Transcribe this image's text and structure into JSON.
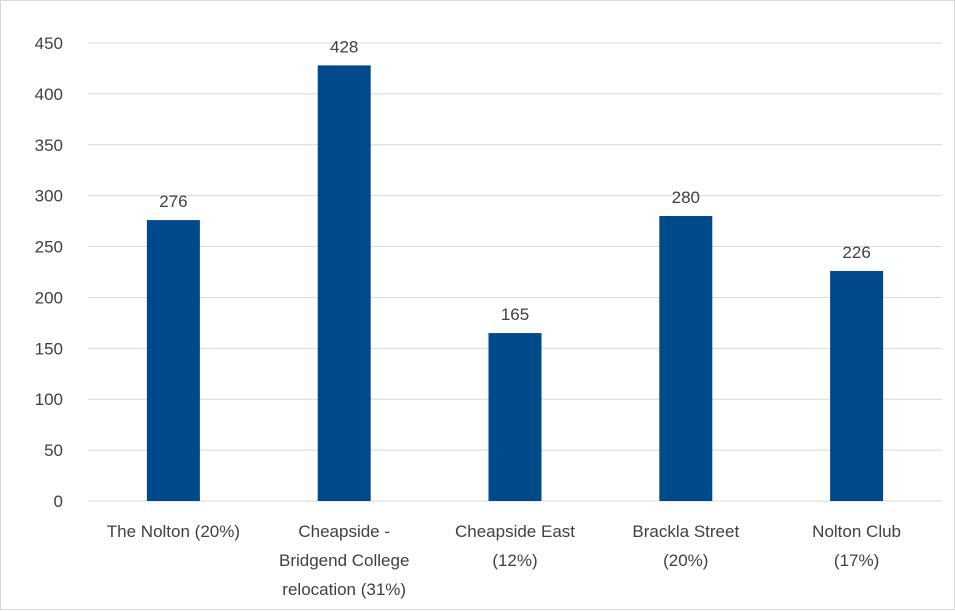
{
  "chart_data": {
    "type": "bar",
    "categories": [
      [
        "The Nolton (20%)"
      ],
      [
        "Cheapside -",
        "Bridgend College",
        "relocation (31%)"
      ],
      [
        "Cheapside East",
        "(12%)"
      ],
      [
        "Brackla Street",
        "(20%)"
      ],
      [
        "Nolton Club",
        "(17%)"
      ]
    ],
    "values": [
      276,
      428,
      165,
      280,
      226
    ],
    "data_labels": [
      "276",
      "428",
      "165",
      "280",
      "226"
    ],
    "title": "",
    "xlabel": "",
    "ylabel": "",
    "ylim": [
      0,
      450
    ],
    "yticks": [
      0,
      50,
      100,
      150,
      200,
      250,
      300,
      350,
      400,
      450
    ],
    "grid": true,
    "legend": "none",
    "bar_color": "#004A8C",
    "grid_color": "#d9d9d9"
  }
}
